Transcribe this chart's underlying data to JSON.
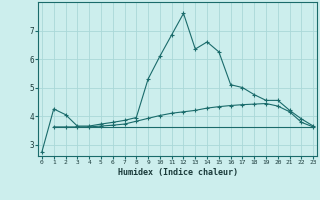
{
  "xlabel": "Humidex (Indice chaleur)",
  "background_color": "#cceeed",
  "grid_color": "#aad8d8",
  "line_color": "#1a6b6b",
  "x_ticks": [
    0,
    1,
    2,
    3,
    4,
    5,
    6,
    7,
    8,
    9,
    10,
    11,
    12,
    13,
    14,
    15,
    16,
    17,
    18,
    19,
    20,
    21,
    22,
    23
  ],
  "y_ticks": [
    3,
    4,
    5,
    6,
    7
  ],
  "xlim": [
    -0.3,
    23.3
  ],
  "ylim": [
    2.6,
    8.0
  ],
  "series1_x": [
    0,
    1,
    2,
    3,
    4,
    5,
    6,
    7,
    8,
    9,
    10,
    11,
    12,
    13,
    14,
    15,
    16,
    17,
    18,
    19,
    20,
    21,
    22,
    23
  ],
  "series1_y": [
    2.75,
    4.25,
    4.05,
    3.65,
    3.65,
    3.72,
    3.78,
    3.85,
    3.95,
    5.3,
    6.1,
    6.85,
    7.6,
    6.35,
    6.6,
    6.25,
    5.1,
    5.0,
    4.75,
    4.55,
    4.55,
    4.2,
    3.9,
    3.65
  ],
  "series2_x": [
    1,
    2,
    3,
    4,
    5,
    6,
    7,
    8,
    9,
    10,
    11,
    12,
    13,
    14,
    15,
    16,
    17,
    18,
    19,
    20,
    21,
    22,
    23
  ],
  "series2_y": [
    3.62,
    3.62,
    3.62,
    3.62,
    3.65,
    3.68,
    3.72,
    3.82,
    3.92,
    4.02,
    4.1,
    4.15,
    4.2,
    4.28,
    4.33,
    4.37,
    4.4,
    4.42,
    4.44,
    4.35,
    4.15,
    3.78,
    3.62
  ],
  "series3_x": [
    1,
    2,
    3,
    4,
    5,
    6,
    7,
    8,
    9,
    10,
    11,
    12,
    13,
    14,
    15,
    16,
    17,
    18,
    19,
    20,
    21,
    22,
    23
  ],
  "series3_y": [
    3.62,
    3.62,
    3.62,
    3.62,
    3.62,
    3.62,
    3.62,
    3.62,
    3.62,
    3.62,
    3.62,
    3.62,
    3.62,
    3.62,
    3.62,
    3.62,
    3.62,
    3.62,
    3.62,
    3.62,
    3.62,
    3.62,
    3.62
  ]
}
